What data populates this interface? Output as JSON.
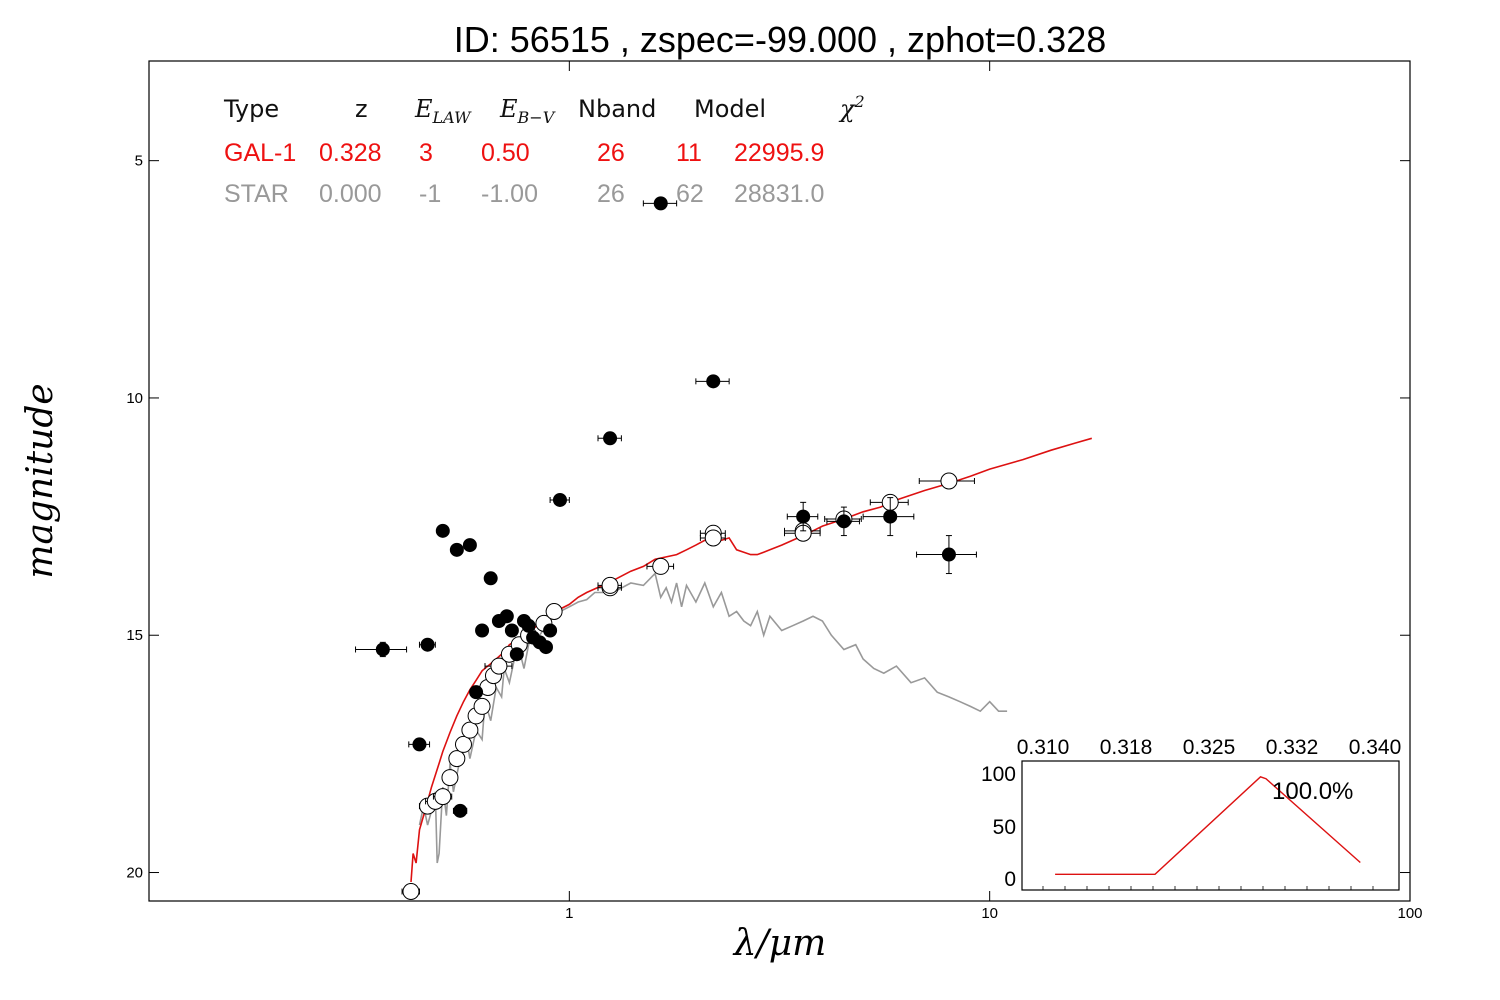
{
  "chart_data": {
    "type": "scatter",
    "title": "ID:  56515 , zspec=-99.000 , zphot=0.328",
    "xlabel": "λ/μm",
    "ylabel": "magnitude",
    "xscale": "log",
    "xlim": [
      0.1,
      100
    ],
    "ylim": [
      20.6,
      2.9
    ],
    "yaxis_inverted": true,
    "x_ticks": [
      {
        "value": 1,
        "label": "1"
      },
      {
        "value": 10,
        "label": "10"
      },
      {
        "value": 100,
        "label": "100"
      }
    ],
    "y_ticks": [
      {
        "value": 5,
        "label": "5"
      },
      {
        "value": 10,
        "label": "10"
      },
      {
        "value": 15,
        "label": "15"
      },
      {
        "value": 20,
        "label": "20"
      }
    ],
    "grid": false,
    "info_table": {
      "headers": [
        "Type",
        "z",
        "E_LAW",
        "E_B-V",
        "Nband",
        "Model",
        "χ²"
      ],
      "rows": [
        {
          "cells": [
            "GAL-1",
            "0.328",
            "3",
            "0.50",
            "26",
            "11",
            "22995.9"
          ],
          "color": "#ee1111"
        },
        {
          "cells": [
            "STAR",
            "0.000",
            "-1",
            "-1.00",
            "26",
            "62",
            "28831.0"
          ],
          "color": "#999999"
        }
      ]
    },
    "series": [
      {
        "name": "GAL-1",
        "kind": "line",
        "color": "#dd1111",
        "x": [
          0.42,
          0.425,
          0.432,
          0.44,
          0.45,
          0.46,
          0.47,
          0.48,
          0.49,
          0.5,
          0.52,
          0.54,
          0.56,
          0.58,
          0.6,
          0.62,
          0.65,
          0.68,
          0.7,
          0.72,
          0.75,
          0.78,
          0.8,
          0.85,
          0.9,
          0.95,
          1.0,
          1.05,
          1.1,
          1.2,
          1.3,
          1.4,
          1.5,
          1.6,
          1.7,
          1.8,
          1.9,
          2.0,
          2.1,
          2.2,
          2.3,
          2.4,
          2.5,
          2.6,
          2.7,
          2.8,
          2.9,
          3.0,
          3.2,
          3.5,
          3.8,
          4.0,
          4.5,
          5.0,
          5.5,
          6.0,
          7.0,
          8.0,
          9.0,
          10.0,
          12.0,
          14.0,
          16.0,
          17.5
        ],
        "y": [
          20.2,
          19.6,
          19.8,
          19.1,
          18.8,
          18.5,
          18.2,
          17.95,
          17.7,
          17.45,
          17.05,
          16.7,
          16.4,
          16.15,
          15.95,
          15.75,
          15.6,
          15.45,
          15.35,
          15.2,
          15.1,
          15.0,
          14.95,
          14.75,
          14.6,
          14.45,
          14.35,
          14.2,
          14.1,
          13.95,
          13.8,
          13.65,
          13.55,
          13.4,
          13.35,
          13.3,
          13.2,
          13.1,
          13.0,
          12.95,
          13.0,
          12.95,
          13.2,
          13.25,
          13.3,
          13.3,
          13.25,
          13.2,
          13.1,
          12.95,
          12.8,
          12.7,
          12.55,
          12.4,
          12.3,
          12.15,
          11.95,
          11.8,
          11.65,
          11.5,
          11.3,
          11.1,
          10.95,
          10.85
        ]
      },
      {
        "name": "STAR",
        "kind": "line",
        "color": "#999999",
        "x": [
          0.44,
          0.45,
          0.46,
          0.47,
          0.48,
          0.485,
          0.49,
          0.5,
          0.51,
          0.52,
          0.53,
          0.55,
          0.57,
          0.58,
          0.6,
          0.62,
          0.63,
          0.65,
          0.67,
          0.69,
          0.7,
          0.72,
          0.74,
          0.76,
          0.78,
          0.8,
          0.82,
          0.85,
          0.88,
          0.9,
          0.95,
          1.0,
          1.05,
          1.1,
          1.15,
          1.2,
          1.3,
          1.4,
          1.5,
          1.6,
          1.65,
          1.7,
          1.75,
          1.8,
          1.85,
          1.9,
          2.0,
          2.1,
          2.2,
          2.3,
          2.4,
          2.5,
          2.6,
          2.7,
          2.8,
          2.9,
          3.0,
          3.2,
          3.4,
          3.6,
          3.8,
          4.0,
          4.2,
          4.5,
          4.8,
          5.0,
          5.3,
          5.6,
          6.0,
          6.5,
          7.0,
          7.5,
          8.0,
          8.5,
          9.0,
          9.5,
          10.0,
          10.5,
          11.0
        ],
        "y": [
          19.0,
          18.6,
          19.0,
          18.7,
          18.3,
          19.8,
          19.6,
          18.2,
          18.8,
          17.7,
          18.3,
          17.6,
          17.2,
          17.6,
          17.0,
          17.2,
          16.4,
          16.8,
          16.1,
          16.3,
          15.7,
          16.0,
          15.5,
          15.3,
          15.7,
          15.2,
          15.0,
          15.0,
          14.8,
          14.6,
          14.5,
          14.4,
          14.3,
          14.25,
          14.1,
          14.1,
          14.05,
          13.9,
          13.95,
          13.7,
          14.2,
          14.0,
          14.3,
          13.9,
          14.4,
          13.95,
          14.3,
          13.9,
          14.4,
          14.1,
          14.6,
          14.5,
          14.7,
          14.8,
          14.5,
          15.0,
          14.6,
          14.9,
          14.8,
          14.7,
          14.6,
          14.7,
          15.0,
          15.3,
          15.2,
          15.5,
          15.7,
          15.8,
          15.65,
          16.0,
          15.9,
          16.2,
          16.3,
          16.4,
          16.5,
          16.6,
          16.4,
          16.6,
          16.6
        ]
      },
      {
        "name": "model magnitudes",
        "kind": "open-circles",
        "color": "#000000",
        "points": [
          {
            "x": 0.42,
            "y": 20.4,
            "xerr": 0.02
          },
          {
            "x": 0.46,
            "y": 18.6,
            "xerr": 0.02
          },
          {
            "x": 0.48,
            "y": 18.5,
            "xerr": 0.025
          },
          {
            "x": 0.5,
            "y": 18.4,
            "xerr": 0.025
          },
          {
            "x": 0.52,
            "y": 18.0,
            "xerr": 0.02
          },
          {
            "x": 0.54,
            "y": 17.6,
            "xerr": 0.02
          },
          {
            "x": 0.56,
            "y": 17.3,
            "xerr": 0.02
          },
          {
            "x": 0.58,
            "y": 17.0,
            "xerr": 0.02
          },
          {
            "x": 0.6,
            "y": 16.7,
            "xerr": 0.02
          },
          {
            "x": 0.62,
            "y": 16.5,
            "xerr": 0.02
          },
          {
            "x": 0.64,
            "y": 16.1,
            "xerr": 0.02
          },
          {
            "x": 0.66,
            "y": 15.85,
            "xerr": 0.02
          },
          {
            "x": 0.68,
            "y": 15.65,
            "xerr": 0.05
          },
          {
            "x": 0.72,
            "y": 15.4,
            "xerr": 0.02
          },
          {
            "x": 0.76,
            "y": 15.2,
            "xerr": 0.02
          },
          {
            "x": 0.8,
            "y": 15.0,
            "xerr": 0.02
          },
          {
            "x": 0.87,
            "y": 14.75,
            "xerr": 0.03
          },
          {
            "x": 0.92,
            "y": 14.5,
            "xerr": 0.03
          },
          {
            "x": 1.25,
            "y": 14.0,
            "xerr": 0.08
          },
          {
            "x": 1.25,
            "y": 13.95,
            "xerr": 0.08
          },
          {
            "x": 1.65,
            "y": 13.55,
            "xerr": 0.12
          },
          {
            "x": 2.2,
            "y": 12.85,
            "xerr": 0.15
          },
          {
            "x": 2.2,
            "y": 12.95,
            "xerr": 0.15
          },
          {
            "x": 3.6,
            "y": 12.8,
            "xerr": 0.35
          },
          {
            "x": 3.6,
            "y": 12.85,
            "xerr": 0.35
          },
          {
            "x": 4.5,
            "y": 12.55,
            "xerr": 0.45
          },
          {
            "x": 5.8,
            "y": 12.2,
            "xerr": 0.6
          },
          {
            "x": 8.0,
            "y": 11.75,
            "xerr": 1.2
          }
        ]
      },
      {
        "name": "observed magnitudes",
        "kind": "filled-circles",
        "color": "#000000",
        "points": [
          {
            "x": 0.36,
            "y": 15.3,
            "xerr": 0.05,
            "yerr": 0.15
          },
          {
            "x": 0.44,
            "y": 17.3,
            "xerr": 0.025,
            "yerr": 0.0
          },
          {
            "x": 0.46,
            "y": 15.2,
            "xerr": 0.02,
            "yerr": 0.0
          },
          {
            "x": 0.5,
            "y": 12.8,
            "xerr": 0.0,
            "yerr": 0.0
          },
          {
            "x": 0.54,
            "y": 13.2,
            "xerr": 0.0,
            "yerr": 0.0
          },
          {
            "x": 0.55,
            "y": 18.7,
            "xerr": 0.02,
            "yerr": 0.0
          },
          {
            "x": 0.58,
            "y": 13.1,
            "xerr": 0.0,
            "yerr": 0.0
          },
          {
            "x": 0.6,
            "y": 16.2,
            "xerr": 0.0,
            "yerr": 0.0
          },
          {
            "x": 0.62,
            "y": 14.9,
            "xerr": 0.0,
            "yerr": 0.0
          },
          {
            "x": 0.65,
            "y": 13.8,
            "xerr": 0.0,
            "yerr": 0.0
          },
          {
            "x": 0.68,
            "y": 14.7,
            "xerr": 0.0,
            "yerr": 0.0
          },
          {
            "x": 0.71,
            "y": 14.6,
            "xerr": 0.0,
            "yerr": 0.0
          },
          {
            "x": 0.73,
            "y": 14.9,
            "xerr": 0.0,
            "yerr": 0.0
          },
          {
            "x": 0.75,
            "y": 15.4,
            "xerr": 0.0,
            "yerr": 0.0
          },
          {
            "x": 0.78,
            "y": 14.7,
            "xerr": 0.0,
            "yerr": 0.0
          },
          {
            "x": 0.8,
            "y": 14.8,
            "xerr": 0.0,
            "yerr": 0.0
          },
          {
            "x": 0.82,
            "y": 15.05,
            "xerr": 0.0,
            "yerr": 0.0
          },
          {
            "x": 0.85,
            "y": 15.15,
            "xerr": 0.0,
            "yerr": 0.0
          },
          {
            "x": 0.88,
            "y": 15.25,
            "xerr": 0.0,
            "yerr": 0.0
          },
          {
            "x": 0.9,
            "y": 14.9,
            "xerr": 0.0,
            "yerr": 0.0
          },
          {
            "x": 0.95,
            "y": 12.15,
            "xerr": 0.05,
            "yerr": 0.0
          },
          {
            "x": 1.25,
            "y": 10.85,
            "xerr": 0.08,
            "yerr": 0.0
          },
          {
            "x": 1.65,
            "y": 5.9,
            "xerr": 0.15,
            "yerr": 0.0
          },
          {
            "x": 2.2,
            "y": 9.65,
            "xerr": 0.2,
            "yerr": 0.0
          },
          {
            "x": 3.6,
            "y": 12.5,
            "xerr": 0.3,
            "yerr": 0.3
          },
          {
            "x": 4.5,
            "y": 12.6,
            "xerr": 0.4,
            "yerr": 0.3
          },
          {
            "x": 5.8,
            "y": 12.5,
            "xerr": 0.8,
            "yerr": 0.4
          },
          {
            "x": 8.0,
            "y": 13.3,
            "xerr": 1.3,
            "yerr": 0.4
          }
        ]
      }
    ],
    "inset": {
      "type": "line",
      "x_ticks": [
        "0.310",
        "0.318",
        "0.325",
        "0.332",
        "0.340"
      ],
      "y_ticks": [
        "0",
        "50",
        "100"
      ],
      "xlim": [
        0.31,
        0.34
      ],
      "ylim": [
        -10,
        110
      ],
      "color": "#dd1111",
      "label": "100.0%",
      "x": [
        0.311,
        0.32,
        0.3295,
        0.33,
        0.3385
      ],
      "y": [
        0,
        0,
        100,
        98,
        12
      ]
    }
  }
}
